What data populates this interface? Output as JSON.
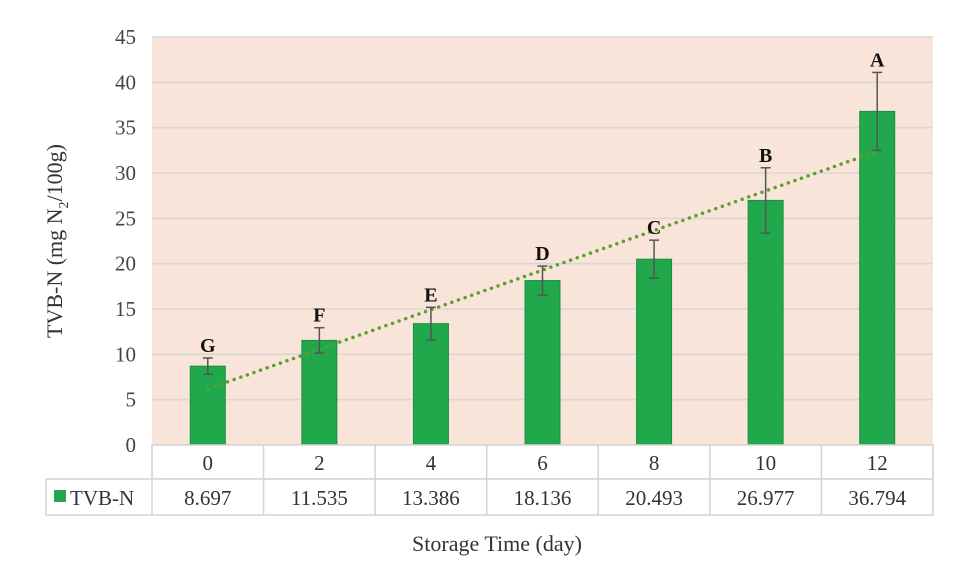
{
  "chart_data": {
    "type": "bar",
    "title": "",
    "xlabel": "Storage Time (day)",
    "ylabel_main": "TVB-N (mg N",
    "ylabel_sub": "2",
    "ylabel_end": "/100g)",
    "categories": [
      "0",
      "2",
      "4",
      "6",
      "8",
      "10",
      "12"
    ],
    "series": [
      {
        "name": "TVB-N",
        "values": [
          8.697,
          11.535,
          13.386,
          18.136,
          20.493,
          26.977,
          36.794
        ],
        "value_labels": [
          "8.697",
          "11.535",
          "13.386",
          "18.136",
          "20.493",
          "26.977",
          "36.794"
        ],
        "error": [
          0.9,
          1.4,
          1.8,
          1.6,
          2.1,
          3.6,
          4.3
        ],
        "letters": [
          "G",
          "F",
          "E",
          "D",
          "C",
          "B",
          "A"
        ],
        "color": "#21a84d"
      }
    ],
    "trendline": {
      "type": "linear",
      "style": "dotted",
      "color": "#5e9e2e",
      "start": 6.19,
      "end": 32.39
    },
    "ylim": [
      0,
      45
    ],
    "yticks": [
      "0",
      "5",
      "10",
      "15",
      "20",
      "25",
      "30",
      "35",
      "40",
      "45"
    ],
    "grid": true,
    "plot_background": "#f8e4d8",
    "data_table": true,
    "legend": "data-table"
  }
}
